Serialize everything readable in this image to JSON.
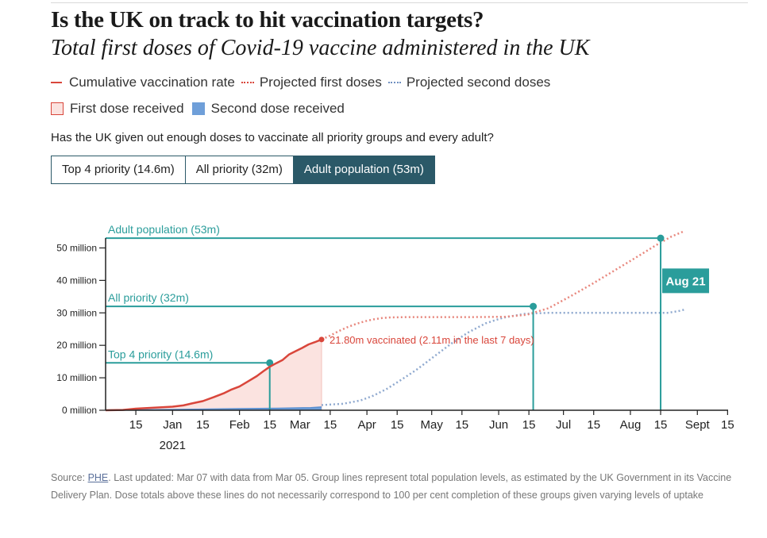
{
  "title": "Is the UK on track to hit vaccination targets?",
  "subtitle": "Total first doses of Covid-19 vaccine administered in the UK",
  "legend": {
    "cumulative": "Cumulative vaccination rate",
    "projected_first": "Projected first doses",
    "projected_second": "Projected second doses",
    "first_received": "First dose received",
    "second_received": "Second dose received"
  },
  "question": "Has the UK given out enough doses to vaccinate all priority groups and every adult?",
  "buttons": {
    "top4": "Top 4 priority (14.6m)",
    "all_priority": "All priority (32m)",
    "adult": "Adult population (53m)"
  },
  "colors": {
    "cumulative": "#d9463b",
    "projected_first": "#e8877d",
    "projected_second": "#8fa9cf",
    "first_fill": "#fbe3e0",
    "second_fill": "#6f9fd9",
    "target": "#2a9d9b",
    "dark": "#2b5968"
  },
  "chart_data": {
    "type": "line",
    "ylim": [
      0,
      55
    ],
    "y_ticks": [
      {
        "v": 0,
        "label": "0 million"
      },
      {
        "v": 10,
        "label": "10 million"
      },
      {
        "v": 20,
        "label": "20 million"
      },
      {
        "v": 30,
        "label": "30 million"
      },
      {
        "v": 40,
        "label": "40 million"
      },
      {
        "v": 50,
        "label": "50 million"
      }
    ],
    "xlim": [
      0,
      268
    ],
    "x_ticks": [
      {
        "d": 14,
        "label": "15"
      },
      {
        "d": 31,
        "label": "Jan"
      },
      {
        "d": 45,
        "label": "15"
      },
      {
        "d": 62,
        "label": "Feb"
      },
      {
        "d": 76,
        "label": "15"
      },
      {
        "d": 90,
        "label": "Mar"
      },
      {
        "d": 104,
        "label": "15"
      },
      {
        "d": 121,
        "label": "Apr"
      },
      {
        "d": 135,
        "label": "15"
      },
      {
        "d": 151,
        "label": "May"
      },
      {
        "d": 165,
        "label": "15"
      },
      {
        "d": 182,
        "label": "Jun"
      },
      {
        "d": 196,
        "label": "15"
      },
      {
        "d": 212,
        "label": "Jul"
      },
      {
        "d": 226,
        "label": "15"
      },
      {
        "d": 243,
        "label": "Aug"
      },
      {
        "d": 257,
        "label": "15"
      },
      {
        "d": 274,
        "label": "Sept"
      },
      {
        "d": 288,
        "label": "15"
      }
    ],
    "year_label": "2021",
    "cumulative_first": [
      [
        0,
        0
      ],
      [
        8,
        0.1
      ],
      [
        14,
        0.5
      ],
      [
        20,
        0.7
      ],
      [
        26,
        0.9
      ],
      [
        31,
        1.1
      ],
      [
        36,
        1.5
      ],
      [
        40,
        2.1
      ],
      [
        45,
        2.8
      ],
      [
        50,
        4.0
      ],
      [
        55,
        5.3
      ],
      [
        58,
        6.3
      ],
      [
        62,
        7.3
      ],
      [
        66,
        8.9
      ],
      [
        70,
        10.5
      ],
      [
        73,
        12.0
      ],
      [
        76,
        13.4
      ],
      [
        79,
        14.5
      ],
      [
        82,
        15.5
      ],
      [
        85,
        17.2
      ],
      [
        88,
        18.2
      ],
      [
        91,
        19.2
      ],
      [
        94,
        20.3
      ],
      [
        97,
        21.0
      ],
      [
        100,
        21.8
      ]
    ],
    "second_received": [
      [
        0,
        0
      ],
      [
        40,
        0.3
      ],
      [
        62,
        0.5
      ],
      [
        80,
        0.6
      ],
      [
        95,
        0.8
      ],
      [
        100,
        1.0
      ]
    ],
    "projected_first": [
      [
        100,
        21.8
      ],
      [
        104,
        23.0
      ],
      [
        108,
        24.4
      ],
      [
        112,
        25.6
      ],
      [
        116,
        26.6
      ],
      [
        120,
        27.4
      ],
      [
        124,
        28.0
      ],
      [
        128,
        28.4
      ],
      [
        132,
        28.6
      ],
      [
        140,
        28.7
      ],
      [
        150,
        28.7
      ],
      [
        170,
        28.7
      ],
      [
        185,
        28.8
      ],
      [
        195,
        29.4
      ],
      [
        205,
        31.4
      ],
      [
        215,
        35.0
      ],
      [
        225,
        38.8
      ],
      [
        235,
        42.8
      ],
      [
        245,
        46.8
      ],
      [
        255,
        50.9
      ],
      [
        262,
        53.5
      ],
      [
        268,
        55.2
      ]
    ],
    "projected_second": [
      [
        100,
        1.6
      ],
      [
        110,
        2.0
      ],
      [
        118,
        3.0
      ],
      [
        124,
        4.5
      ],
      [
        130,
        6.5
      ],
      [
        136,
        9.0
      ],
      [
        144,
        12.5
      ],
      [
        152,
        16.5
      ],
      [
        160,
        20.5
      ],
      [
        168,
        24.0
      ],
      [
        176,
        26.8
      ],
      [
        184,
        28.5
      ],
      [
        194,
        29.7
      ],
      [
        204,
        30.0
      ],
      [
        220,
        30.0
      ],
      [
        245,
        30.0
      ],
      [
        260,
        30.0
      ],
      [
        265,
        30.5
      ],
      [
        268,
        31.0
      ]
    ],
    "targets": [
      {
        "label": "Adult population (53m)",
        "value": 53,
        "end": 257
      },
      {
        "label": "All priority (32m)",
        "value": 32,
        "end": 198
      },
      {
        "label": "Top 4 priority (14.6m)",
        "value": 14.6,
        "end": 76
      }
    ],
    "current_label": "21.80m vaccinated (2.11m in the last 7 days)",
    "current_point": [
      100,
      21.8
    ],
    "date_badge": "Aug 21"
  },
  "footer": {
    "source_prefix": "Source: ",
    "source_link": "PHE",
    "text": ". Last updated: Mar 07 with data from Mar 05. Group lines represent total population levels, as estimated by the UK Government in its Vaccine Delivery Plan. Dose totals above these lines do not necessarily correspond to 100 per cent completion of these groups given varying levels of uptake"
  }
}
